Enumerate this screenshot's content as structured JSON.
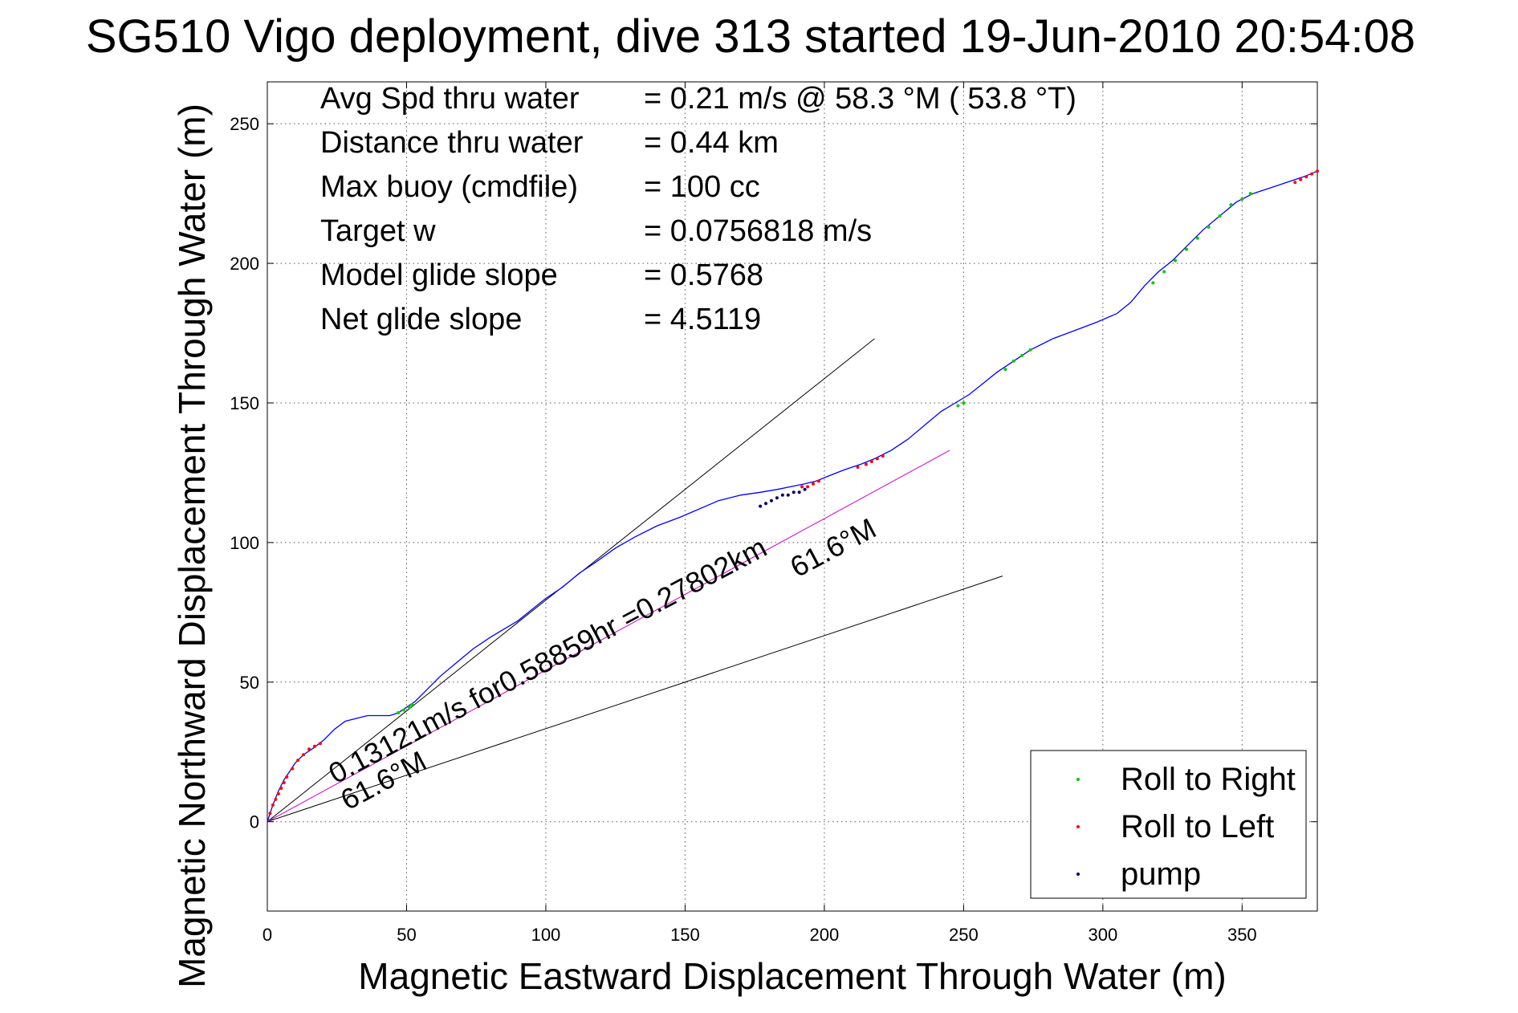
{
  "chart_data": {
    "type": "line",
    "title": "SG510 Vigo deployment, dive 313 started 19-Jun-2010 20:54:08",
    "xlabel": "Magnetic Eastward Displacement Through Water (m)",
    "ylabel": "Magnetic Northward Displacement Through Water (m)",
    "xlim": [
      0,
      377
    ],
    "ylim": [
      -32,
      265
    ],
    "xticks": [
      0,
      50,
      100,
      150,
      200,
      250,
      300,
      350
    ],
    "yticks": [
      0,
      50,
      100,
      150,
      200,
      250
    ],
    "grid": true,
    "legend_position": "bottom-right",
    "info": [
      {
        "label": "Avg Spd thru water",
        "value": "=  0.21 m/s @  58.3 °M ( 53.8 °T)"
      },
      {
        "label": "Distance thru water",
        "value": "=  0.44 km"
      },
      {
        "label": "Max buoy (cmdfile)",
        "value": "= 100 cc"
      },
      {
        "label": "Target w",
        "value": "= 0.0756818 m/s"
      },
      {
        "label": "Model glide slope",
        "value": "= 0.5768"
      },
      {
        "label": "Net glide slope",
        "value": "= 4.5119"
      }
    ],
    "track": {
      "color": "#0000ff",
      "x": [
        0,
        2,
        4,
        6,
        8,
        10,
        13,
        16,
        20,
        24,
        28,
        32,
        36,
        40,
        44,
        47,
        50,
        53,
        57,
        62,
        68,
        74,
        80,
        85,
        90,
        95,
        100,
        106,
        112,
        118,
        125,
        132,
        140,
        148,
        155,
        162,
        170,
        177,
        183,
        188,
        193,
        197,
        202,
        207,
        213,
        218,
        224,
        230,
        236,
        242,
        247,
        252,
        257,
        262,
        268,
        274,
        282,
        290,
        298,
        305,
        310,
        315,
        320,
        325,
        330,
        336,
        342,
        348,
        354,
        360,
        366,
        372,
        377
      ],
      "y": [
        0,
        6,
        11,
        15,
        18,
        21,
        24,
        26,
        29,
        33,
        36,
        37,
        38,
        38,
        38,
        39,
        41,
        43,
        47,
        52,
        57,
        62,
        66,
        69,
        72,
        76,
        80,
        84,
        89,
        93,
        98,
        102,
        106,
        109,
        112,
        115,
        117,
        118,
        119,
        120,
        121,
        122,
        124,
        126,
        128,
        130,
        133,
        137,
        142,
        147,
        150,
        153,
        157,
        161,
        165,
        169,
        173,
        176,
        179,
        182,
        186,
        192,
        197,
        201,
        206,
        212,
        217,
        222,
        225,
        227,
        229,
        231,
        233
      ]
    },
    "reference_lines": [
      {
        "name": "glide-envelope-upper",
        "color": "#000000",
        "x": [
          0,
          218
        ],
        "y": [
          0,
          173
        ]
      },
      {
        "name": "glide-envelope-lower",
        "color": "#000000",
        "x": [
          0,
          264
        ],
        "y": [
          0,
          88
        ]
      },
      {
        "name": "net-heading",
        "color": "#cc00cc",
        "x": [
          0,
          245
        ],
        "y": [
          0,
          133
        ]
      }
    ],
    "markers": {
      "roll_right": {
        "color": "#00cc00",
        "x": [
          47,
          49,
          51,
          52,
          248,
          250,
          265,
          268,
          271,
          274,
          318,
          322,
          326,
          330,
          334,
          338,
          342,
          346,
          350,
          353
        ],
        "y": [
          39,
          40,
          41,
          42,
          149,
          150,
          162,
          165,
          167,
          169,
          193,
          197,
          201,
          205,
          209,
          213,
          217,
          221,
          223,
          225
        ]
      },
      "roll_left": {
        "color": "#ff0000",
        "x": [
          1,
          2,
          3,
          4,
          5,
          6,
          7,
          9,
          11,
          13,
          15,
          17,
          19,
          192,
          194,
          196,
          198,
          212,
          215,
          217,
          219,
          221,
          369,
          371,
          373,
          375,
          377
        ],
        "y": [
          3,
          6,
          8,
          10,
          12,
          14,
          16,
          19,
          22,
          24,
          26,
          27,
          28,
          120,
          120,
          121,
          122,
          127,
          128,
          129,
          130,
          131,
          229,
          230,
          231,
          232,
          233
        ]
      },
      "pump": {
        "color": "#000066",
        "x": [
          177,
          179,
          181,
          183,
          185,
          187,
          189,
          191,
          193
        ],
        "y": [
          113,
          114,
          115,
          116,
          117,
          117,
          118,
          118,
          119
        ]
      }
    },
    "annotations": {
      "heading_start": "61.6°M",
      "speed_note": "0.13121m/s for0.58859hr =0.27802km",
      "heading_end": "61.6°M"
    },
    "legend": [
      {
        "label": "Roll to Right",
        "color": "#00cc00"
      },
      {
        "label": "Roll to Left",
        "color": "#ff0000"
      },
      {
        "label": "pump",
        "color": "#000066"
      }
    ]
  }
}
